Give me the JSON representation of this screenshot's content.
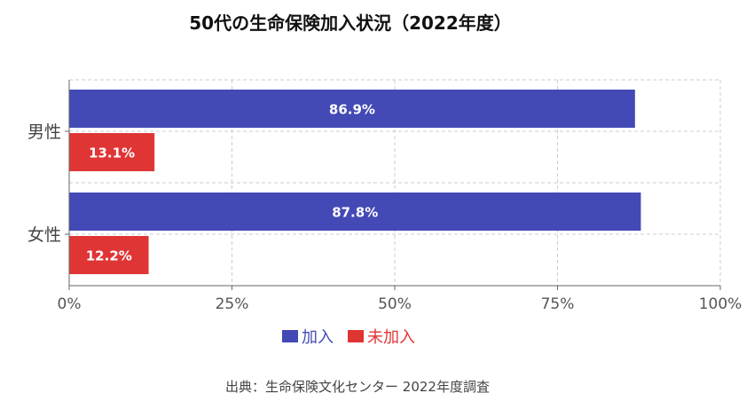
{
  "chart_data": {
    "type": "bar",
    "orientation": "horizontal",
    "title": "50代の生命保険加入状況（2022年度）",
    "categories": [
      "男性",
      "女性"
    ],
    "series": [
      {
        "name": "加入",
        "values": [
          86.9,
          87.8
        ],
        "labels": [
          "86.9%",
          "87.8%"
        ],
        "color": "#4349b5"
      },
      {
        "name": "未加入",
        "values": [
          13.1,
          12.2
        ],
        "labels": [
          "13.1%",
          "12.2%"
        ],
        "color": "#e03535"
      }
    ],
    "xlim": [
      0,
      100
    ],
    "xticks": [
      "0%",
      "25%",
      "50%",
      "75%",
      "100%"
    ],
    "grid": true,
    "legend": "bottom",
    "source": "出典：生命保険文化センター 2022年度調査"
  }
}
